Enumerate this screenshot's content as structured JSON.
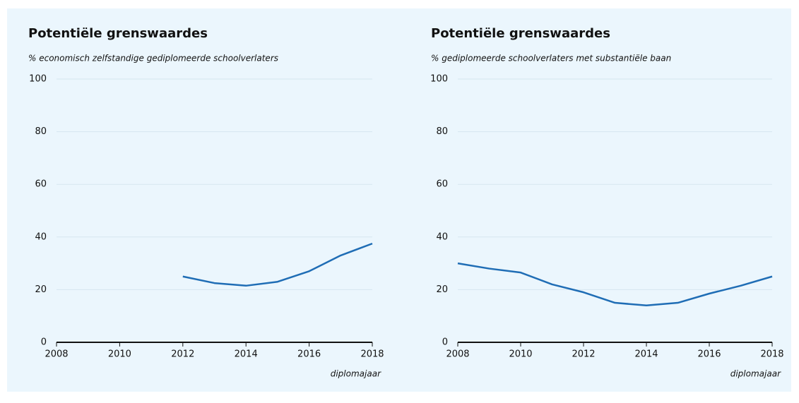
{
  "chart_data": [
    {
      "type": "line",
      "title": "Potentiële grenswaardes",
      "subtitle": "% economisch zelfstandige gediplomeerde schoolverlaters",
      "x_label": "diplomajaar",
      "x": [
        2012,
        2013,
        2014,
        2015,
        2016,
        2017,
        2018
      ],
      "values": [
        25,
        22.5,
        21.5,
        23,
        27,
        33,
        37.5
      ],
      "color": "#1f6db5",
      "xlim": [
        2008,
        2018
      ],
      "xticks": [
        2008,
        2010,
        2012,
        2014,
        2016,
        2018
      ],
      "ylim": [
        0,
        100
      ],
      "yticks": [
        0,
        20,
        40,
        60,
        80,
        100
      ],
      "grid": true
    },
    {
      "type": "line",
      "title": "Potentiële grenswaardes",
      "subtitle": "% gediplomeerde schoolverlaters met substantiële baan",
      "x_label": "diplomajaar",
      "x": [
        2008,
        2009,
        2010,
        2011,
        2012,
        2013,
        2014,
        2015,
        2016,
        2017,
        2018
      ],
      "values": [
        30,
        28,
        26.5,
        22,
        19,
        15,
        14,
        15,
        18.5,
        21.5,
        25
      ],
      "color": "#1f6db5",
      "xlim": [
        2008,
        2018
      ],
      "xticks": [
        2008,
        2010,
        2012,
        2014,
        2016,
        2018
      ],
      "ylim": [
        0,
        100
      ],
      "yticks": [
        0,
        20,
        40,
        60,
        80,
        100
      ],
      "grid": true
    }
  ]
}
